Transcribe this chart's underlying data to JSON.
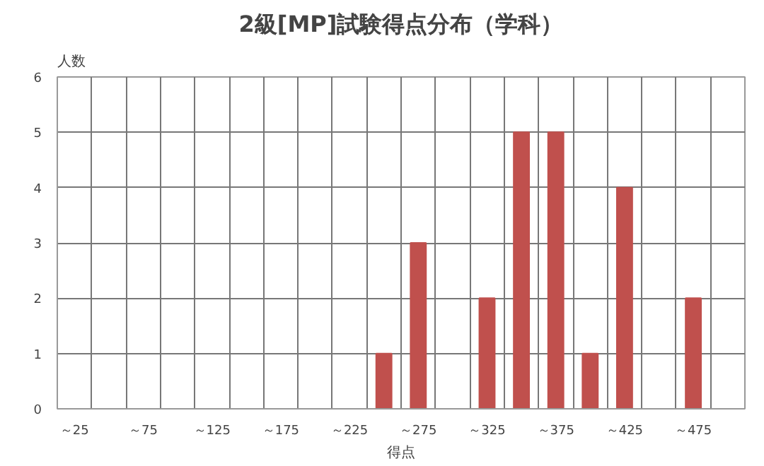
{
  "chart_data": {
    "type": "bar",
    "title": "2級[MP]試験得点分布（学科）",
    "xlabel": "得点",
    "ylabel": "人数",
    "categories": [
      "～25",
      null,
      "～75",
      null,
      "～125",
      null,
      "～175",
      null,
      "～225",
      null,
      "～275",
      null,
      "～325",
      null,
      "～375",
      null,
      "～425",
      null,
      "～475",
      null
    ],
    "values": [
      0,
      0,
      0,
      0,
      0,
      0,
      0,
      0,
      0,
      1,
      3,
      0,
      2,
      5,
      5,
      1,
      4,
      0,
      2,
      0
    ],
    "color": "#c0504d",
    "ylim": [
      0,
      6
    ],
    "yticks": [
      0,
      1,
      2,
      3,
      4,
      5,
      6
    ],
    "grid": true
  }
}
